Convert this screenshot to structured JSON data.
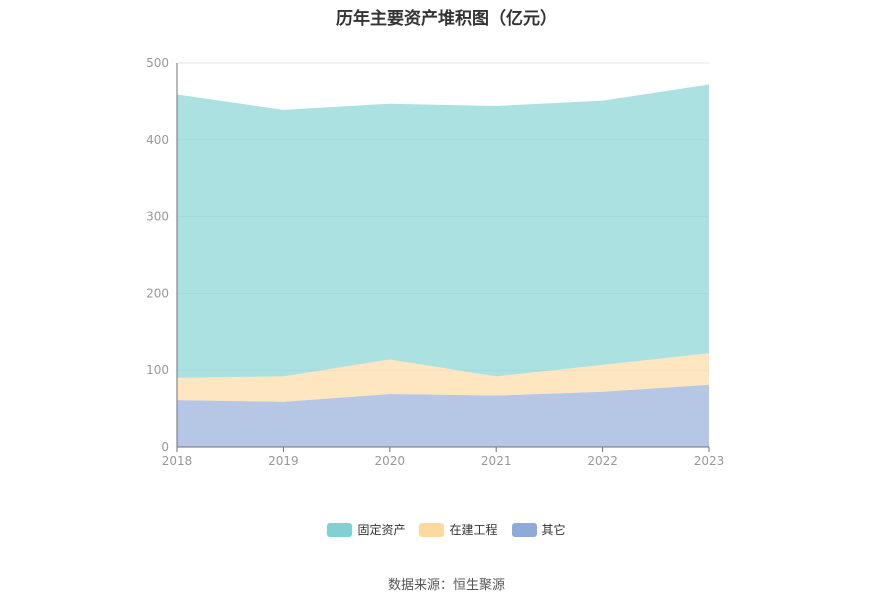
{
  "title": "历年主要资产堆积图（亿元）",
  "source": "数据来源：恒生聚源",
  "chart_data": {
    "type": "area",
    "stacked": true,
    "x": [
      "2018",
      "2019",
      "2020",
      "2021",
      "2022",
      "2023"
    ],
    "ylim": [
      0,
      500
    ],
    "yticks": [
      0,
      100,
      200,
      300,
      400,
      500
    ],
    "grid": true,
    "legend_position": "bottom",
    "series": [
      {
        "name": "其它",
        "color": "#8fa9d9",
        "values": [
          61,
          59,
          69,
          67,
          72,
          81
        ]
      },
      {
        "name": "在建工程",
        "color": "#fdd99f",
        "values": [
          29,
          33,
          45,
          25,
          35,
          41
        ]
      },
      {
        "name": "固定资产",
        "color": "#7fd1d3",
        "values": [
          369,
          347,
          333,
          352,
          344,
          350
        ]
      }
    ],
    "legend_order": [
      "固定资产",
      "在建工程",
      "其它"
    ]
  }
}
